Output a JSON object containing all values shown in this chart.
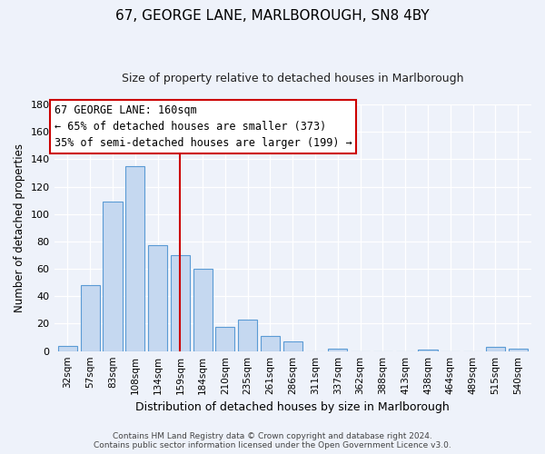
{
  "title": "67, GEORGE LANE, MARLBOROUGH, SN8 4BY",
  "subtitle": "Size of property relative to detached houses in Marlborough",
  "xlabel": "Distribution of detached houses by size in Marlborough",
  "ylabel": "Number of detached properties",
  "bar_labels": [
    "32sqm",
    "57sqm",
    "83sqm",
    "108sqm",
    "134sqm",
    "159sqm",
    "184sqm",
    "210sqm",
    "235sqm",
    "261sqm",
    "286sqm",
    "311sqm",
    "337sqm",
    "362sqm",
    "388sqm",
    "413sqm",
    "438sqm",
    "464sqm",
    "489sqm",
    "515sqm",
    "540sqm"
  ],
  "bar_values": [
    4,
    48,
    109,
    135,
    77,
    70,
    60,
    18,
    23,
    11,
    7,
    0,
    2,
    0,
    0,
    0,
    1,
    0,
    0,
    3,
    2
  ],
  "bar_color": "#c5d8f0",
  "bar_edge_color": "#5b9bd5",
  "vline_index": 5,
  "vline_color": "#cc0000",
  "ylim": [
    0,
    180
  ],
  "yticks": [
    0,
    20,
    40,
    60,
    80,
    100,
    120,
    140,
    160,
    180
  ],
  "annotation_title": "67 GEORGE LANE: 160sqm",
  "annotation_line1": "← 65% of detached houses are smaller (373)",
  "annotation_line2": "35% of semi-detached houses are larger (199) →",
  "annotation_box_color": "#ffffff",
  "annotation_box_edge": "#cc0000",
  "footer_line1": "Contains HM Land Registry data © Crown copyright and database right 2024.",
  "footer_line2": "Contains public sector information licensed under the Open Government Licence v3.0.",
  "bg_color": "#eef2fa",
  "plot_bg_color": "#eef2fa",
  "title_fontsize": 11,
  "subtitle_fontsize": 9,
  "xlabel_fontsize": 9,
  "ylabel_fontsize": 8.5,
  "tick_fontsize": 8,
  "xtick_fontsize": 7.5,
  "footer_fontsize": 6.5
}
